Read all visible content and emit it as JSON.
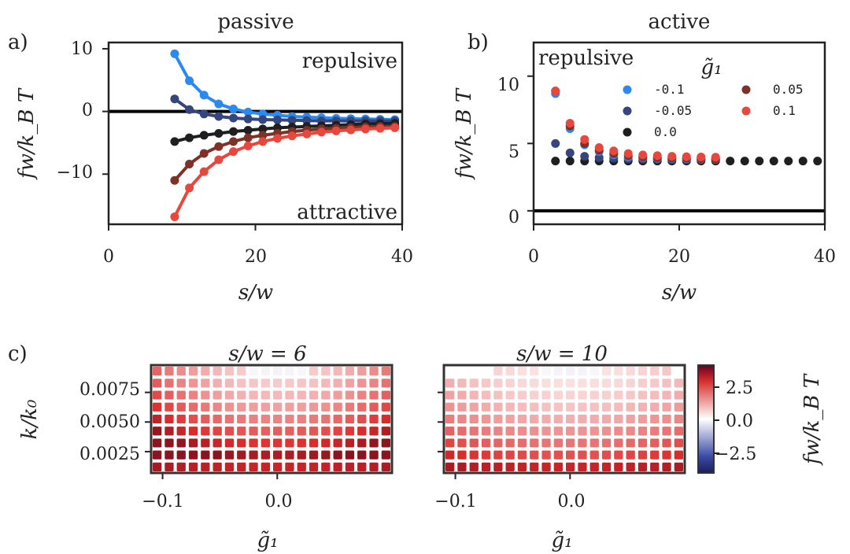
{
  "panel_labels": {
    "a": "a)",
    "b": "b)",
    "c": "c)"
  },
  "chart_data": [
    {
      "type": "line",
      "title": "passive",
      "xlabel": "s/w",
      "ylabel": "fw/k_B T",
      "xlim": [
        0,
        40
      ],
      "ylim": [
        -18,
        11
      ],
      "xticks": [
        "0",
        "20",
        "40"
      ],
      "yticks": [
        "10",
        "0",
        "−10"
      ],
      "annotations": [
        "repulsive",
        "attractive"
      ],
      "x": [
        9,
        11,
        13,
        15,
        17,
        19,
        21,
        23,
        25,
        27,
        29,
        31,
        33,
        35,
        37,
        39
      ],
      "series": [
        {
          "name": "-0.1",
          "color": "#2a8af0",
          "values": [
            9.2,
            4.9,
            2.6,
            1.2,
            0.4,
            -0.1,
            -0.4,
            -0.6,
            -0.8,
            -0.9,
            -1.0,
            -1.1,
            -1.15,
            -1.2,
            -1.25,
            -1.3
          ]
        },
        {
          "name": "-0.05",
          "color": "#34467d",
          "values": [
            2.0,
            0.3,
            -0.4,
            -0.8,
            -1.05,
            -1.2,
            -1.3,
            -1.35,
            -1.4,
            -1.45,
            -1.5,
            -1.5,
            -1.5,
            -1.5,
            -1.5,
            -1.5
          ]
        },
        {
          "name": "0.0",
          "color": "#1f1f1f",
          "values": [
            -4.8,
            -4.2,
            -3.8,
            -3.5,
            -3.2,
            -3.0,
            -2.8,
            -2.6,
            -2.5,
            -2.4,
            -2.3,
            -2.2,
            -2.1,
            -2.0,
            -1.95,
            -1.9
          ]
        },
        {
          "name": "0.05",
          "color": "#7f3128",
          "values": [
            -11.0,
            -8.4,
            -6.7,
            -5.6,
            -4.8,
            -4.2,
            -3.8,
            -3.5,
            -3.2,
            -3.0,
            -2.8,
            -2.7,
            -2.6,
            -2.5,
            -2.4,
            -2.4
          ]
        },
        {
          "name": "0.1",
          "color": "#e8473d",
          "values": [
            -16.8,
            -12.2,
            -9.6,
            -7.7,
            -6.4,
            -5.5,
            -4.8,
            -4.3,
            -3.9,
            -3.6,
            -3.3,
            -3.1,
            -2.95,
            -2.8,
            -2.7,
            -2.6
          ]
        }
      ]
    },
    {
      "type": "scatter",
      "title": "active",
      "xlabel": "s/w",
      "ylabel": "fw/k_B T",
      "xlim": [
        0,
        40
      ],
      "ylim": [
        -1,
        12.5
      ],
      "xticks": [
        "0",
        "20",
        "40"
      ],
      "yticks": [
        "10",
        "5",
        "0"
      ],
      "annotation": "repulsive",
      "legend_title": "g̃₁",
      "series": [
        {
          "name": "-0.1",
          "color": "#2a8af0",
          "x": [
            3,
            5,
            7,
            9,
            11,
            13,
            15,
            17,
            19,
            21,
            23,
            25
          ],
          "values": [
            8.7,
            6.1,
            4.9,
            4.4,
            4.15,
            4.0,
            3.95,
            3.9,
            3.88,
            3.86,
            3.85,
            3.84
          ]
        },
        {
          "name": "-0.05",
          "color": "#34467d",
          "x": [
            3,
            5,
            7,
            9,
            11,
            13,
            15,
            17,
            19,
            21,
            23,
            25
          ],
          "values": [
            5.0,
            4.3,
            4.05,
            3.95,
            3.9,
            3.86,
            3.84,
            3.82,
            3.81,
            3.8,
            3.8,
            3.8
          ]
        },
        {
          "name": "0.0",
          "color": "#1f1f1f",
          "x": [
            3,
            5,
            7,
            9,
            11,
            13,
            15,
            17,
            19,
            21,
            23,
            25,
            27,
            29,
            31,
            33,
            35,
            37,
            39
          ],
          "values": [
            3.7,
            3.7,
            3.7,
            3.7,
            3.7,
            3.7,
            3.7,
            3.7,
            3.7,
            3.7,
            3.7,
            3.7,
            3.7,
            3.7,
            3.7,
            3.7,
            3.7,
            3.7,
            3.7
          ]
        },
        {
          "name": "0.05",
          "color": "#7f3128",
          "x": [
            3,
            5,
            7,
            9,
            11,
            13,
            15,
            17,
            19,
            21,
            23,
            25
          ],
          "values": [
            8.9,
            6.3,
            5.0,
            4.5,
            4.25,
            4.1,
            4.0,
            3.95,
            3.92,
            3.9,
            3.88,
            3.86
          ]
        },
        {
          "name": "0.1",
          "color": "#e8473d",
          "x": [
            3,
            5,
            7,
            9,
            11,
            13,
            15,
            17,
            19,
            21,
            23,
            25
          ],
          "values": [
            8.9,
            6.5,
            5.3,
            4.7,
            4.45,
            4.25,
            4.15,
            4.1,
            4.05,
            4.02,
            4.0,
            3.98
          ]
        }
      ]
    },
    {
      "type": "heatmap",
      "title": "s/w = 6",
      "xlabel": "g̃₁",
      "ylabel": "k/k₀",
      "xlim": [
        -0.11,
        0.1
      ],
      "ylim": [
        0.0007,
        0.0098
      ],
      "xticks": [
        "−0.1",
        "0.0"
      ],
      "yticks": [
        "0.0075",
        "0.0050",
        "0.0025"
      ],
      "colorbar": {
        "label": "fw/k_B T",
        "range": [
          -4,
          4
        ],
        "ticks": [
          "2.5",
          "0.0",
          "−2.5"
        ]
      }
    },
    {
      "type": "heatmap",
      "title": "s/w = 10",
      "xlabel": "g̃₁",
      "ylabel": "k/k₀",
      "xlim": [
        -0.11,
        0.1
      ],
      "ylim": [
        0.0007,
        0.0098
      ],
      "xticks": [
        "−0.1",
        "0.0"
      ]
    }
  ]
}
